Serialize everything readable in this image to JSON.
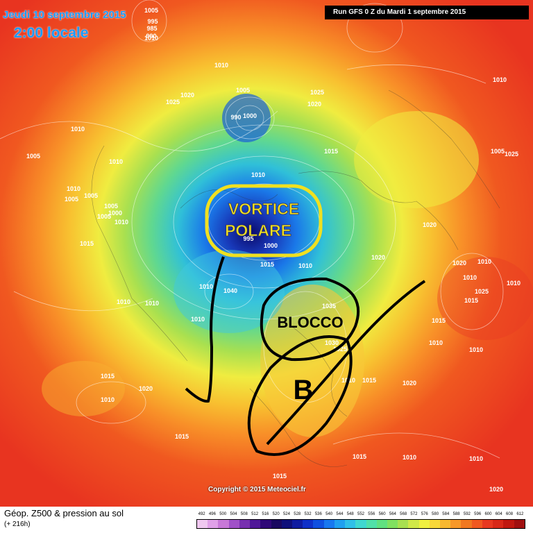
{
  "header": {
    "date": "Jeudi 10 septembre 2015",
    "time": "2:00 locale",
    "run": "Run GFS 0 Z du Mardi 1 septembre 2015"
  },
  "annotations": {
    "vortex_line1": "VORTICE",
    "vortex_line2": "POLARE",
    "block": "BLOCCO",
    "b": "B"
  },
  "copyright": "Copyright © 2015 Meteociel.fr",
  "footer": {
    "title": "Géop. Z500 & pression au sol",
    "subtitle": "(+ 216h)"
  },
  "scale": {
    "labels": [
      "492",
      "496",
      "500",
      "504",
      "508",
      "512",
      "516",
      "520",
      "524",
      "528",
      "532",
      "536",
      "540",
      "544",
      "548",
      "552",
      "556",
      "560",
      "564",
      "568",
      "572",
      "576",
      "580",
      "584",
      "588",
      "592",
      "596",
      "600",
      "604",
      "608",
      "612"
    ],
    "colors": [
      "#f0c8f0",
      "#e0a0e8",
      "#c878d8",
      "#a050c8",
      "#7830b0",
      "#501898",
      "#300878",
      "#1a0860",
      "#10107a",
      "#101ca0",
      "#1030c8",
      "#1050e0",
      "#1878f0",
      "#20a0f0",
      "#30c0e8",
      "#40d8d0",
      "#50e0a8",
      "#60e080",
      "#80e060",
      "#a8e050",
      "#d0e848",
      "#f0f040",
      "#f8d838",
      "#f8b830",
      "#f89828",
      "#f07820",
      "#f05820",
      "#e83820",
      "#d82818",
      "#c01810",
      "#a01010"
    ]
  },
  "isobars": [
    "1005",
    "995",
    "985",
    "990",
    "1010",
    "1010",
    "1005",
    "1005",
    "1000",
    "1005",
    "1010",
    "1020",
    "1025",
    "1005",
    "1000",
    "990",
    "1025",
    "1020",
    "1010",
    "1010",
    "1010",
    "1005",
    "1005",
    "1015",
    "1010",
    "1010",
    "1015",
    "995",
    "1000",
    "1015",
    "1010",
    "1010",
    "1040",
    "1035",
    "1030",
    "1025",
    "1010",
    "1010",
    "1015",
    "1020",
    "1015",
    "1010",
    "1015",
    "1020",
    "1020",
    "1020",
    "1010",
    "1010",
    "1020",
    "1010",
    "1010",
    "1010",
    "1025",
    "1015",
    "1025",
    "1005",
    "1015",
    "1010",
    "1010",
    "1015",
    "1015",
    "1020",
    "1010",
    "1010",
    "1020",
    "1010"
  ]
}
